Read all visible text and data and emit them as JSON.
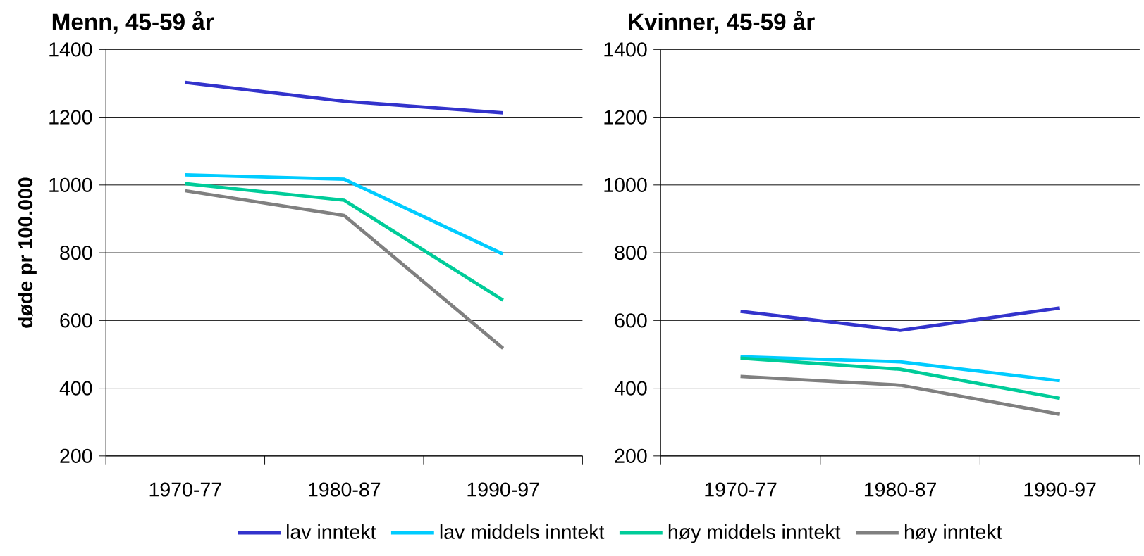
{
  "chart_data": [
    {
      "type": "line",
      "title": "Menn, 45-59 år",
      "ylabel": "døde pr 100.000",
      "categories": [
        "1970-77",
        "1980-87",
        "1990-97"
      ],
      "ylim": [
        200,
        1400
      ],
      "yticks": [
        200,
        400,
        600,
        800,
        1000,
        1200,
        1400
      ],
      "grid": "y",
      "legend": "bottom",
      "marker": "none",
      "line_style": "solid",
      "series": [
        {
          "name": "lav inntekt",
          "color": "#3333cc",
          "values": [
            1303,
            1247,
            1213
          ]
        },
        {
          "name": "lav middels inntekt",
          "color": "#00ccff",
          "values": [
            1030,
            1017,
            796
          ]
        },
        {
          "name": "høy middels inntekt",
          "color": "#00cc99",
          "values": [
            1004,
            955,
            660
          ]
        },
        {
          "name": "høy inntekt",
          "color": "#808080",
          "values": [
            983,
            910,
            518
          ]
        }
      ]
    },
    {
      "type": "line",
      "title": "Kvinner, 45-59 år",
      "categories": [
        "1970-77",
        "1980-87",
        "1990-97"
      ],
      "ylim": [
        200,
        1400
      ],
      "yticks": [
        200,
        400,
        600,
        800,
        1000,
        1200,
        1400
      ],
      "grid": "y",
      "marker": "none",
      "line_style": "solid",
      "series": [
        {
          "color": "#3333cc",
          "values": [
            627,
            571,
            637
          ]
        },
        {
          "color": "#00ccff",
          "values": [
            493,
            478,
            422
          ]
        },
        {
          "color": "#00cc99",
          "values": [
            489,
            456,
            370
          ]
        },
        {
          "color": "#808080",
          "values": [
            435,
            409,
            323
          ]
        }
      ]
    }
  ]
}
